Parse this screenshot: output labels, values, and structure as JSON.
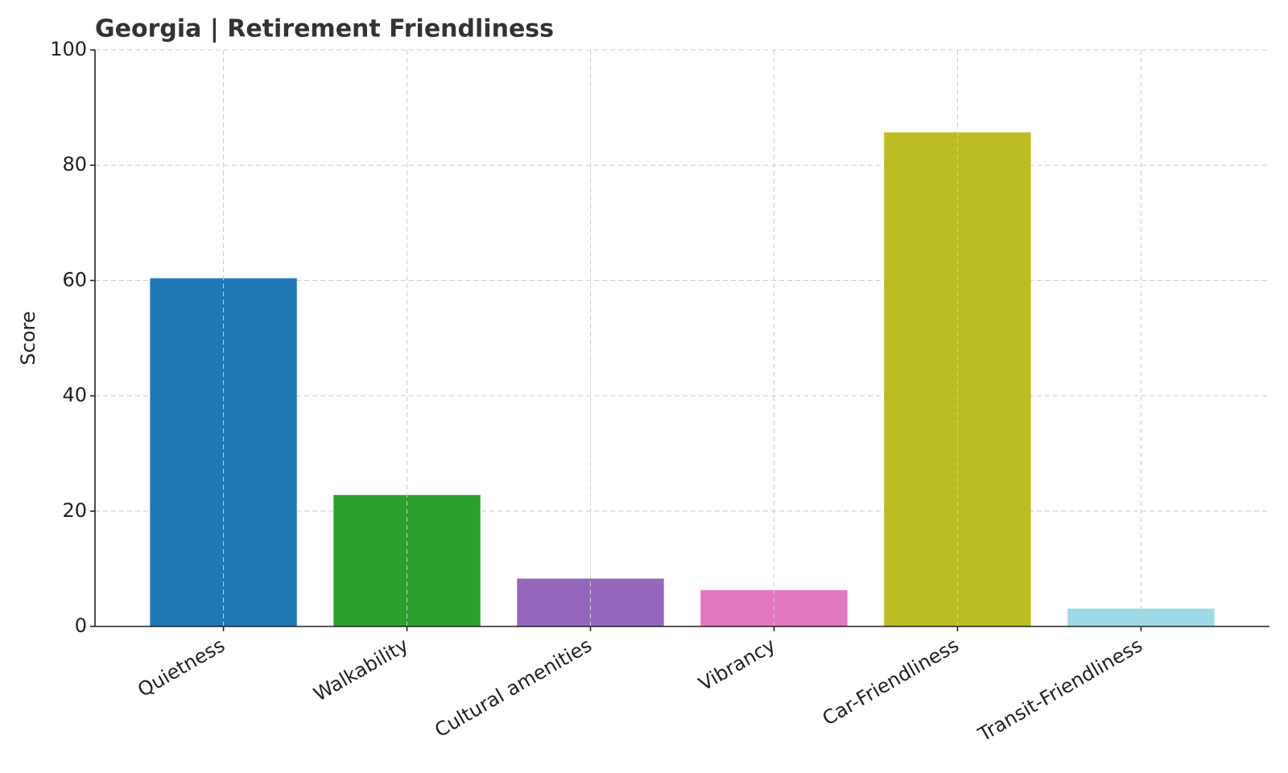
{
  "chart_data": {
    "type": "bar",
    "title": "Georgia | Retirement Friendliness",
    "y_label": "Score",
    "categories": [
      "Quietness",
      "Walkability",
      "Cultural amenities",
      "Vibrancy",
      "Car-Friendliness",
      "Transit-Friendliness"
    ],
    "values": [
      60.4,
      22.8,
      8.3,
      6.3,
      85.7,
      3.1
    ],
    "colors": [
      "#1f77b4",
      "#2ca02c",
      "#9467bd",
      "#e377c2",
      "#bcbd22",
      "#9edae5"
    ],
    "ylim": [
      0,
      100
    ],
    "yticks": [
      0,
      20,
      40,
      60,
      80,
      100
    ],
    "grid": true
  }
}
